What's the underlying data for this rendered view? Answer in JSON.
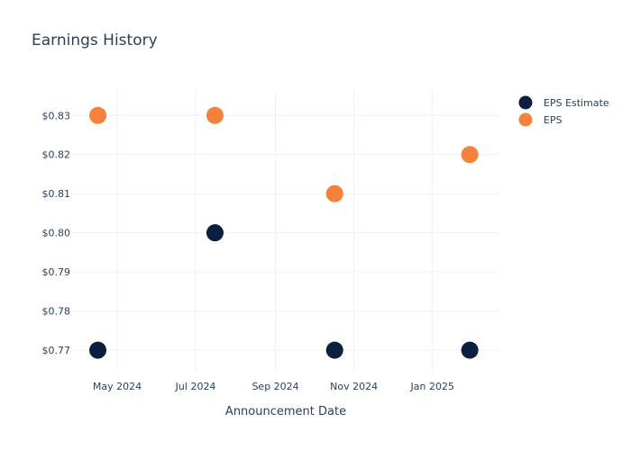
{
  "chart_data": {
    "type": "scatter",
    "title": "Earnings History",
    "xlabel": "Announcement Date",
    "ylabel": "",
    "x_ticks": [
      {
        "date": "2024-05-01",
        "label": "May 2024"
      },
      {
        "date": "2024-07-01",
        "label": "Jul 2024"
      },
      {
        "date": "2024-09-01",
        "label": "Sep 2024"
      },
      {
        "date": "2024-11-01",
        "label": "Nov 2024"
      },
      {
        "date": "2025-01-01",
        "label": "Jan 2025"
      }
    ],
    "y_ticks": [
      {
        "value": 0.77,
        "label": "$0.77"
      },
      {
        "value": 0.78,
        "label": "$0.78"
      },
      {
        "value": 0.79,
        "label": "$0.79"
      },
      {
        "value": 0.8,
        "label": "$0.80"
      },
      {
        "value": 0.81,
        "label": "$0.81"
      },
      {
        "value": 0.82,
        "label": "$0.82"
      },
      {
        "value": 0.83,
        "label": "$0.83"
      }
    ],
    "xlim": [
      "2024-03-27",
      "2025-02-22"
    ],
    "ylim": [
      0.7645,
      0.8365
    ],
    "grid": true,
    "legend_position": "top-right",
    "series": [
      {
        "name": "EPS Estimate",
        "color": "#0b1f3f",
        "x": [
          "2024-04-16",
          "2024-07-16",
          "2024-10-17",
          "2025-01-30"
        ],
        "y": [
          0.77,
          0.8,
          0.77,
          0.77
        ]
      },
      {
        "name": "EPS",
        "color": "#f5813a",
        "x": [
          "2024-04-16",
          "2024-07-16",
          "2024-10-17",
          "2025-01-30"
        ],
        "y": [
          0.83,
          0.83,
          0.81,
          0.82
        ]
      }
    ]
  }
}
